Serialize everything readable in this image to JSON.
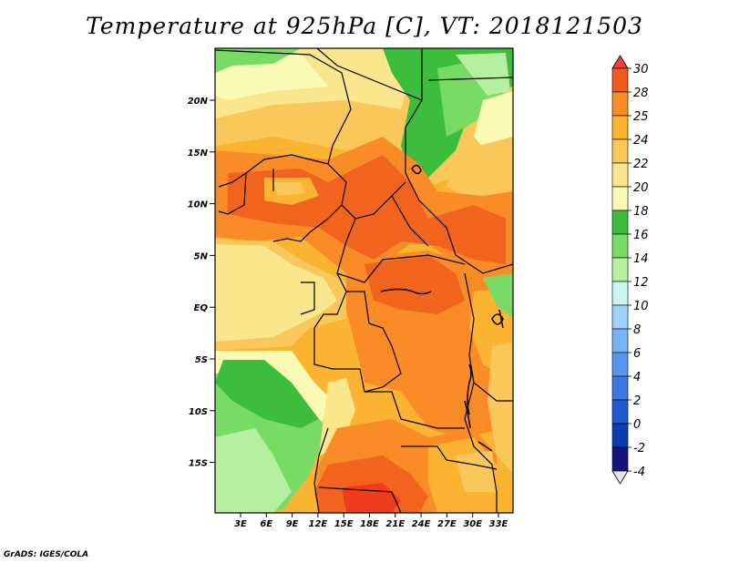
{
  "title": "Temperature at 925hPa [C], VT: 2018121503",
  "credit": "GrADS: IGES/COLA",
  "map": {
    "lat_labels": [
      "20N",
      "15N",
      "10N",
      "5N",
      "EQ",
      "5S",
      "10S",
      "15S"
    ],
    "lon_labels": [
      "3E",
      "6E",
      "9E",
      "12E",
      "15E",
      "18E",
      "21E",
      "24E",
      "27E",
      "30E",
      "33E"
    ]
  },
  "colorbar": {
    "levels": [
      "30",
      "28",
      "25",
      "24",
      "22",
      "20",
      "18",
      "16",
      "14",
      "12",
      "10",
      "8",
      "6",
      "4",
      "2",
      "0",
      "-2",
      "-4"
    ],
    "colors": [
      "#fa3c3c",
      "#f05a1e",
      "#fa8c28",
      "#fab432",
      "#fac85a",
      "#fae68c",
      "#fafab4",
      "#3cbe3c",
      "#78dc64",
      "#b4f0a0",
      "#c8f5f0",
      "#a0d2fa",
      "#78b4f5",
      "#5a96f0",
      "#3c78e6",
      "#1e5ad2",
      "#0a3cb4",
      "#14147d",
      "#e6e6fa"
    ]
  },
  "field_colors": {
    "warm_red": "#f03c1e",
    "orange_dark": "#f0641e",
    "orange": "#fa8c28",
    "amber": "#fab432",
    "light_orange": "#fac85a",
    "pale_yellow": "#fae68c",
    "cream": "#fafab4",
    "green_dark": "#3cbe3c",
    "green": "#78dc64",
    "green_light": "#b4f0a0"
  }
}
